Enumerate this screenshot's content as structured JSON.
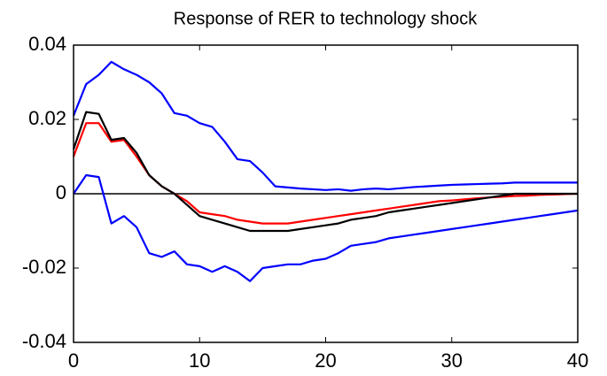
{
  "chart_data": {
    "type": "line",
    "title": "Response of RER to technology shock",
    "x": [
      0,
      1,
      2,
      3,
      4,
      5,
      6,
      7,
      8,
      9,
      10,
      11,
      12,
      13,
      14,
      15,
      16,
      17,
      18,
      19,
      20,
      21,
      22,
      23,
      24,
      25,
      26,
      27,
      28,
      29,
      30,
      31,
      32,
      33,
      34,
      35,
      36,
      37,
      38,
      39,
      40
    ],
    "series": [
      {
        "color": "#0000ff",
        "values": [
          0.021,
          0.0295,
          0.032,
          0.0355,
          0.0335,
          0.032,
          0.03,
          0.027,
          0.0217,
          0.021,
          0.019,
          0.018,
          0.014,
          0.0093,
          0.0088,
          0.0057,
          0.002,
          0.0017,
          0.0014,
          0.0012,
          0.001,
          0.0012,
          0.0008,
          0.0012,
          0.0014,
          0.0012,
          0.0015,
          0.0018,
          0.002,
          0.0022,
          0.0024,
          0.0025,
          0.0026,
          0.0027,
          0.0028,
          0.003,
          0.003,
          0.003,
          0.003,
          0.003,
          0.003
        ]
      },
      {
        "color": "#0000ff",
        "values": [
          0,
          0.005,
          0.0045,
          -0.008,
          -0.006,
          -0.009,
          -0.016,
          -0.017,
          -0.0155,
          -0.019,
          -0.0195,
          -0.021,
          -0.0195,
          -0.021,
          -0.0235,
          -0.02,
          -0.0195,
          -0.019,
          -0.019,
          -0.018,
          -0.0175,
          -0.016,
          -0.014,
          -0.0135,
          -0.013,
          -0.012,
          -0.0115,
          -0.011,
          -0.0105,
          -0.01,
          -0.0095,
          -0.009,
          -0.0085,
          -0.008,
          -0.0075,
          -0.007,
          -0.0065,
          -0.006,
          -0.0055,
          -0.005,
          -0.0045
        ]
      },
      {
        "color": "#ff0000",
        "values": [
          0.01,
          0.019,
          0.019,
          0.014,
          0.0145,
          0.01,
          0.005,
          0.002,
          0,
          -0.002,
          -0.005,
          -0.0055,
          -0.006,
          -0.007,
          -0.0075,
          -0.008,
          -0.008,
          -0.008,
          -0.0075,
          -0.007,
          -0.0065,
          -0.006,
          -0.0055,
          -0.005,
          -0.0045,
          -0.004,
          -0.0035,
          -0.003,
          -0.0025,
          -0.002,
          -0.0018,
          -0.0015,
          -0.0012,
          -0.001,
          -0.0008,
          -0.0006,
          -0.0005,
          -0.0003,
          -0.0002,
          -0.0001,
          0
        ]
      },
      {
        "color": "#000000",
        "values": [
          0.012,
          0.022,
          0.0215,
          0.0145,
          0.015,
          0.011,
          0.005,
          0.002,
          0,
          -0.003,
          -0.006,
          -0.007,
          -0.008,
          -0.009,
          -0.01,
          -0.01,
          -0.01,
          -0.01,
          -0.0095,
          -0.009,
          -0.0085,
          -0.008,
          -0.007,
          -0.0065,
          -0.006,
          -0.005,
          -0.0045,
          -0.004,
          -0.0035,
          -0.003,
          -0.0025,
          -0.002,
          -0.0015,
          -0.001,
          -0.0005,
          0,
          0,
          0,
          0,
          0,
          0
        ]
      }
    ],
    "hline": 0,
    "xlim": [
      0,
      40
    ],
    "ylim": [
      -0.04,
      0.04
    ],
    "xticks": [
      0,
      10,
      20,
      30,
      40
    ],
    "yticks": [
      -0.04,
      -0.02,
      0,
      0.02,
      0.04
    ],
    "grid": false
  }
}
